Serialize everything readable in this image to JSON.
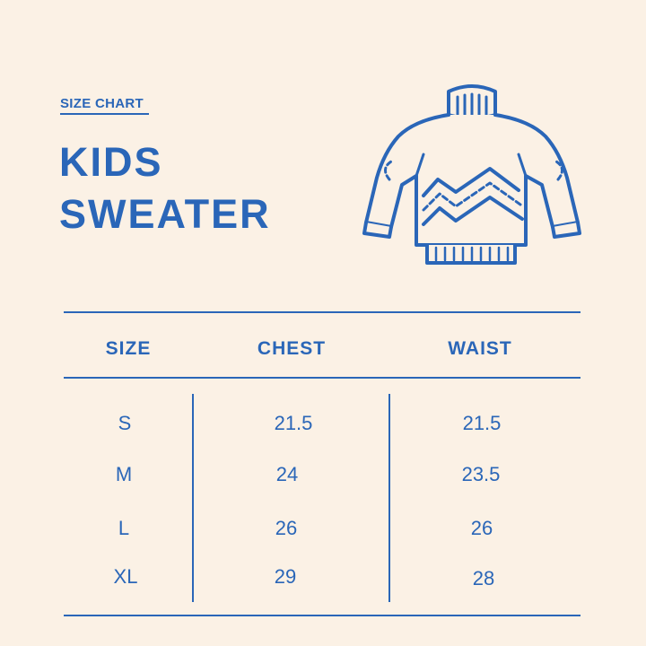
{
  "header": {
    "eyebrow": "SIZE CHART",
    "title_line1": "KIDS",
    "title_line2": "SWEATER"
  },
  "illustration": {
    "icon": "sweater-icon"
  },
  "table": {
    "columns": [
      "SIZE",
      "CHEST",
      "WAIST"
    ],
    "rows": [
      {
        "size": "S",
        "chest": "21.5",
        "waist": "21.5"
      },
      {
        "size": "M",
        "chest": "24",
        "waist": "23.5"
      },
      {
        "size": "L",
        "chest": "26",
        "waist": "26"
      },
      {
        "size": "XL",
        "chest": "29",
        "waist": "28"
      }
    ]
  },
  "colors": {
    "background": "#fbf1e5",
    "accent": "#2a66b8"
  }
}
